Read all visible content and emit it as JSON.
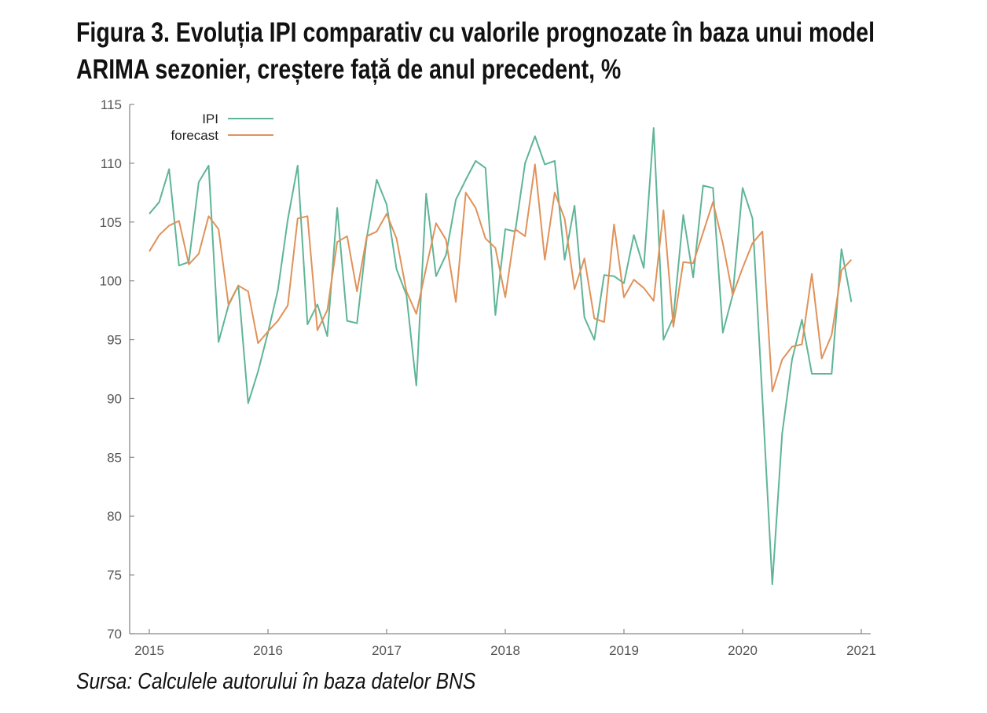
{
  "chart_data": {
    "type": "line",
    "title": "Figura 3. Evoluția IPI comparativ cu valorile prognozate în baza unui model ARIMA sezonier, creștere față de anul precedent, %",
    "source": "Sursa: Calculele autorului în baza datelor BNS",
    "xlabel": "",
    "ylabel": "",
    "xlim": [
      2015,
      2021
    ],
    "ylim": [
      70,
      115
    ],
    "x_ticks": [
      "2015",
      "2016",
      "2017",
      "2018",
      "2019",
      "2020",
      "2021"
    ],
    "y_ticks": [
      "70",
      "75",
      "80",
      "85",
      "90",
      "95",
      "100",
      "105",
      "110",
      "115"
    ],
    "grid": false,
    "legend_position": "top-left",
    "x_start": 2015,
    "x_step_months": 1,
    "series": [
      {
        "name": "IPI",
        "color": "#5fb596",
        "values": [
          105.7,
          106.7,
          109.5,
          101.3,
          101.6,
          108.4,
          109.8,
          94.8,
          97.9,
          99.6,
          89.6,
          92.3,
          95.6,
          99.2,
          105.2,
          109.8,
          96.3,
          98.0,
          95.3,
          106.2,
          96.6,
          96.4,
          103.7,
          108.6,
          106.5,
          101.0,
          98.8,
          91.1,
          107.4,
          100.4,
          102.2,
          106.9,
          108.6,
          110.2,
          109.6,
          97.1,
          104.4,
          104.2,
          110.0,
          112.3,
          109.9,
          110.2,
          101.8,
          106.4,
          96.9,
          95.0,
          100.5,
          100.4,
          99.8,
          103.9,
          101.1,
          113.0,
          95.0,
          96.9,
          105.6,
          100.3,
          108.1,
          107.9,
          95.6,
          98.8,
          107.9,
          105.3,
          90.0,
          74.2,
          87.0,
          93.3,
          96.7,
          92.1,
          92.1,
          92.1,
          102.7,
          98.2
        ]
      },
      {
        "name": "forecast",
        "color": "#e0925a",
        "values": [
          102.5,
          103.9,
          104.7,
          105.1,
          101.4,
          102.3,
          105.5,
          104.4,
          98.0,
          99.6,
          99.1,
          94.7,
          95.7,
          96.6,
          97.9,
          105.3,
          105.5,
          95.8,
          97.5,
          103.3,
          103.8,
          99.1,
          103.8,
          104.2,
          105.7,
          103.6,
          99.1,
          97.2,
          101.1,
          104.9,
          103.5,
          98.2,
          107.5,
          106.2,
          103.6,
          102.8,
          98.6,
          104.4,
          103.8,
          109.9,
          101.8,
          107.5,
          105.3,
          99.3,
          101.9,
          96.8,
          96.5,
          104.8,
          98.6,
          100.1,
          99.4,
          98.3,
          106.0,
          96.1,
          101.6,
          101.5,
          104.1,
          106.7,
          103.2,
          98.8,
          101.1,
          103.2,
          104.2,
          90.6,
          93.3,
          94.4,
          94.6,
          100.6,
          93.4,
          95.4,
          100.9,
          101.8
        ]
      }
    ]
  }
}
